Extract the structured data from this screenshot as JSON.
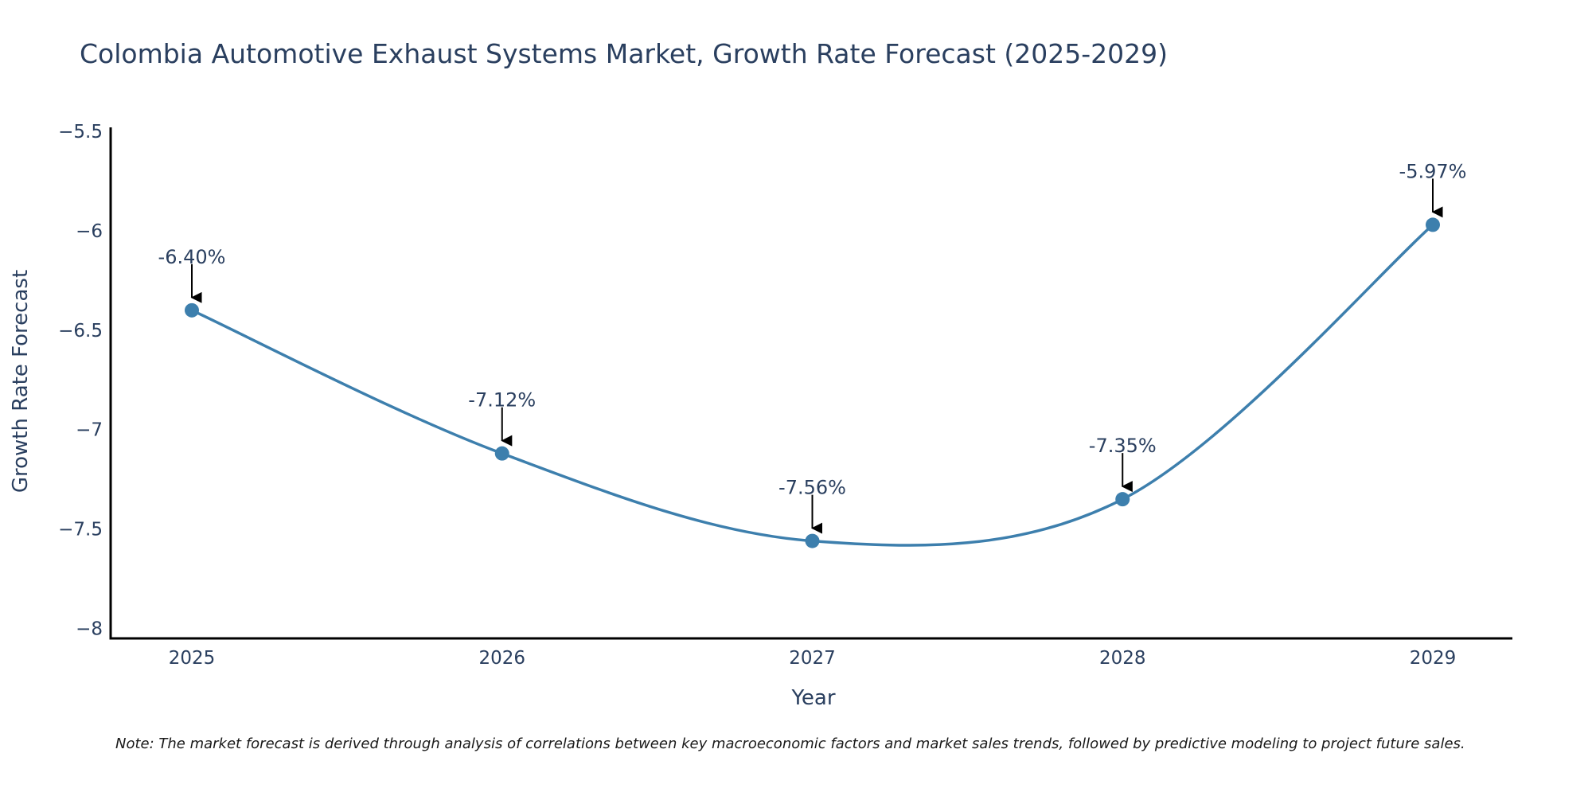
{
  "chart_data": {
    "type": "line",
    "title": "Colombia Automotive Exhaust Systems Market, Growth Rate Forecast (2025-2029)",
    "xlabel": "Year",
    "ylabel": "Growth Rate Forecast",
    "categories": [
      "2025",
      "2026",
      "2027",
      "2028",
      "2029"
    ],
    "series": [
      {
        "name": "Growth Rate Forecast",
        "values": [
          -6.4,
          -7.12,
          -7.56,
          -7.35,
          -5.97
        ]
      }
    ],
    "data_labels": [
      "-6.40%",
      "-7.12%",
      "-7.56%",
      "-7.35%",
      "-5.97%"
    ],
    "ylim": [
      -8.05,
      -5.48
    ],
    "yticks": [
      -5.5,
      -6,
      -6.5,
      -7,
      -7.5,
      -8
    ],
    "ytick_labels": [
      "−5.5",
      "−6",
      "−6.5",
      "−7",
      "−7.5",
      "−8"
    ],
    "grid": false,
    "legend": "none",
    "line_color": "#3d7fad",
    "marker_color": "#3d7fad",
    "annotation_color": "#000000",
    "text_color": "#2a3f5f",
    "note": "Note: The market forecast is derived through analysis of correlations between key macroeconomic factors and market sales trends, followed by predictive modeling to project future sales."
  }
}
